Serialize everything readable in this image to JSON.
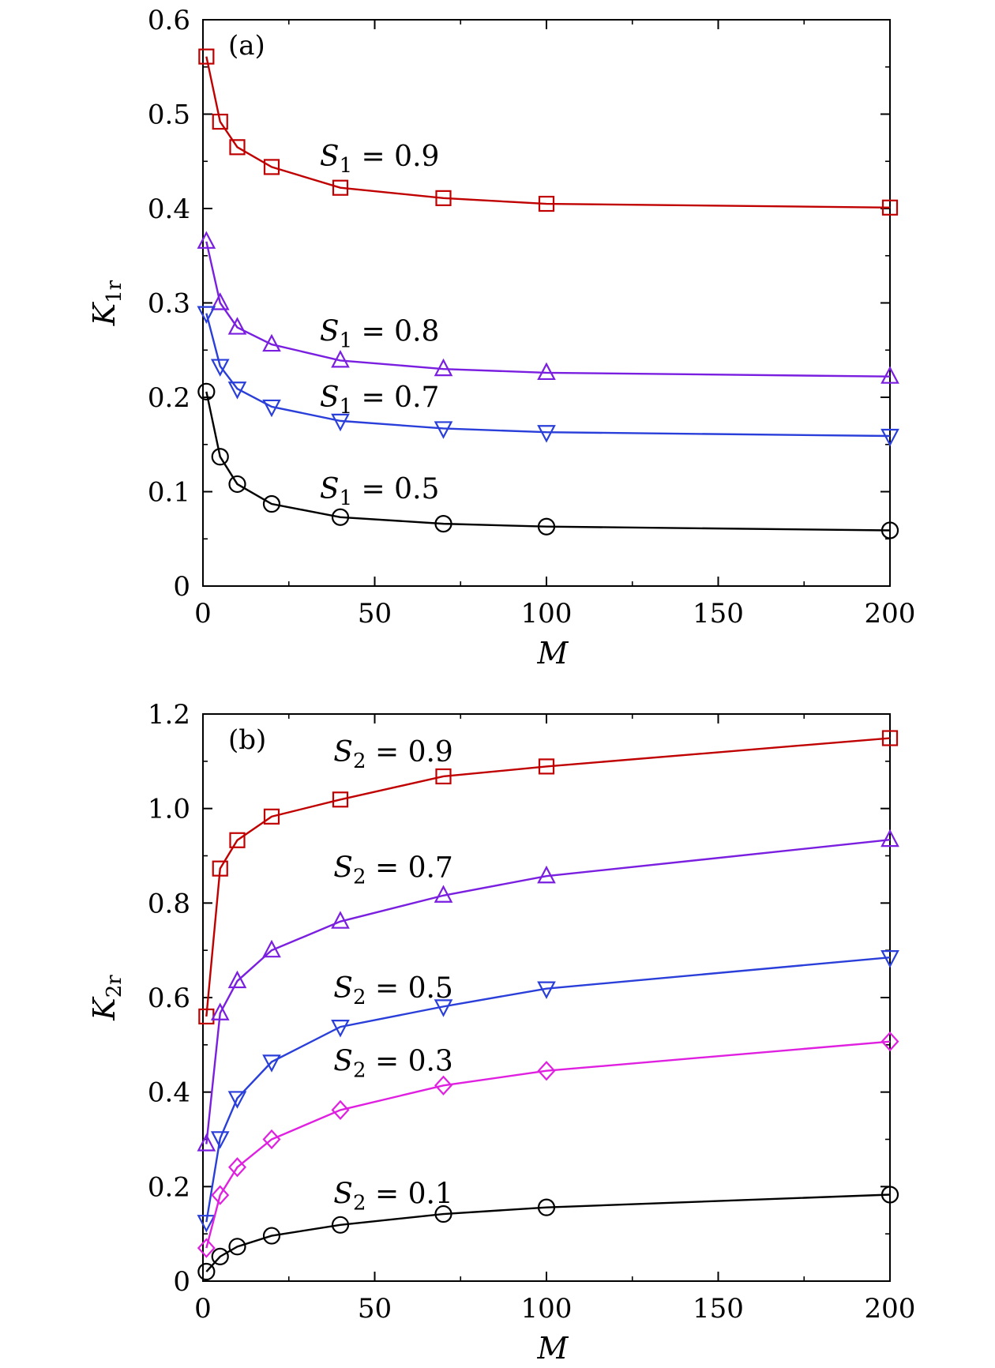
{
  "chart_data": [
    {
      "type": "line",
      "panel_label": "(a)",
      "xlabel": "M",
      "ylabel_main": "K",
      "ylabel_sub": "1r",
      "xlim": [
        0,
        200
      ],
      "ylim": [
        0,
        0.6
      ],
      "xticks": [
        0,
        50,
        100,
        150,
        200
      ],
      "xtick_labels": [
        "0",
        "50",
        "100",
        "150",
        "200"
      ],
      "yticks": [
        0,
        0.1,
        0.2,
        0.3,
        0.4,
        0.5,
        0.6
      ],
      "ytick_labels": [
        "0",
        "0.1",
        "0.2",
        "0.3",
        "0.4",
        "0.5",
        "0.6"
      ],
      "grid": false,
      "x": [
        1,
        5,
        10,
        20,
        40,
        70,
        100,
        200
      ],
      "series": [
        {
          "label_var": "S",
          "label_sub": "1",
          "label_value": "= 0.9",
          "label_at": [
            34,
            0.445
          ],
          "marker": "square",
          "color": "#c00000",
          "values": [
            0.561,
            0.492,
            0.465,
            0.444,
            0.422,
            0.411,
            0.405,
            0.401
          ]
        },
        {
          "label_var": "S",
          "label_sub": "1",
          "label_value": "= 0.8",
          "label_at": [
            34,
            0.26
          ],
          "marker": "triangle-up",
          "color": "#7a1fe0",
          "values": [
            0.365,
            0.3,
            0.274,
            0.256,
            0.239,
            0.23,
            0.226,
            0.222
          ]
        },
        {
          "label_var": "S",
          "label_sub": "1",
          "label_value": "= 0.7",
          "label_at": [
            34,
            0.19
          ],
          "marker": "triangle-down",
          "color": "#2a3fd9",
          "values": [
            0.289,
            0.233,
            0.209,
            0.19,
            0.175,
            0.167,
            0.163,
            0.159
          ]
        },
        {
          "label_var": "S",
          "label_sub": "1",
          "label_value": "= 0.5",
          "label_at": [
            34,
            0.093
          ],
          "marker": "circle",
          "color": "#000000",
          "values": [
            0.206,
            0.137,
            0.108,
            0.087,
            0.073,
            0.066,
            0.063,
            0.059
          ]
        }
      ]
    },
    {
      "type": "line",
      "panel_label": "(b)",
      "xlabel": "M",
      "ylabel_main": "K",
      "ylabel_sub": "2r",
      "xlim": [
        0,
        200
      ],
      "ylim": [
        0,
        1.2
      ],
      "xticks": [
        0,
        50,
        100,
        150,
        200
      ],
      "xtick_labels": [
        "0",
        "50",
        "100",
        "150",
        "200"
      ],
      "yticks": [
        0,
        0.2,
        0.4,
        0.6,
        0.8,
        1.0,
        1.2
      ],
      "ytick_labels": [
        "0",
        "0.2",
        "0.4",
        "0.6",
        "0.8",
        "1.0",
        "1.2"
      ],
      "grid": false,
      "x": [
        1,
        5,
        10,
        20,
        40,
        70,
        100,
        200
      ],
      "series": [
        {
          "label_var": "S",
          "label_sub": "2",
          "label_value": "= 0.9",
          "label_at": [
            38,
            1.1
          ],
          "marker": "square",
          "color": "#c00000",
          "values": [
            0.56,
            0.873,
            0.933,
            0.983,
            1.019,
            1.068,
            1.089,
            1.149
          ]
        },
        {
          "label_var": "S",
          "label_sub": "2",
          "label_value": "= 0.7",
          "label_at": [
            38,
            0.855
          ],
          "marker": "triangle-up",
          "color": "#7a1fe0",
          "values": [
            0.29,
            0.567,
            0.635,
            0.7,
            0.761,
            0.816,
            0.857,
            0.934
          ]
        },
        {
          "label_var": "S",
          "label_sub": "2",
          "label_value": "= 0.5",
          "label_at": [
            38,
            0.6
          ],
          "marker": "triangle-down",
          "color": "#2a3fd9",
          "values": [
            0.125,
            0.302,
            0.387,
            0.464,
            0.538,
            0.581,
            0.619,
            0.685
          ]
        },
        {
          "label_var": "S",
          "label_sub": "2",
          "label_value": "= 0.3",
          "label_at": [
            38,
            0.445
          ],
          "marker": "diamond",
          "color": "#e020e0",
          "values": [
            0.07,
            0.182,
            0.241,
            0.3,
            0.362,
            0.414,
            0.445,
            0.507
          ]
        },
        {
          "label_var": "S",
          "label_sub": "2",
          "label_value": "= 0.1",
          "label_at": [
            38,
            0.165
          ],
          "marker": "circle",
          "color": "#000000",
          "values": [
            0.02,
            0.052,
            0.073,
            0.096,
            0.119,
            0.142,
            0.156,
            0.183
          ]
        }
      ]
    }
  ]
}
